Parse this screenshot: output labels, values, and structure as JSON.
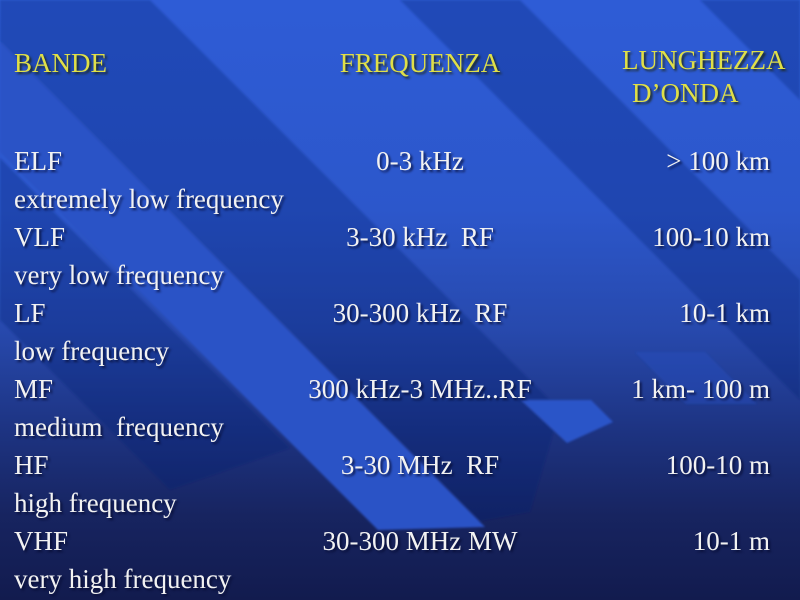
{
  "slide": {
    "header": {
      "bande": "BANDE",
      "frequenza": "FREQUENZA",
      "lunghezza_line1": "LUNGHEZZA",
      "lunghezza_line2": "D’ONDA"
    },
    "rows": [
      {
        "band": "ELF",
        "full": "extremely low frequency",
        "freq": "0-3 kHz",
        "wave": "> 100 km"
      },
      {
        "band": "VLF",
        "full": "very low frequency",
        "freq": "3-30 kHz  RF",
        "wave": "100-10 km"
      },
      {
        "band": "LF",
        "full": "low frequency",
        "freq": "30-300 kHz  RF",
        "wave": "10-1 km"
      },
      {
        "band": "MF",
        "full": "medium  frequency",
        "freq": "300 kHz-3 MHz..RF",
        "wave": "1 km- 100 m"
      },
      {
        "band": "HF",
        "full": "high frequency",
        "freq": "3-30 MHz  RF",
        "wave": "100-10 m"
      },
      {
        "band": "VHF",
        "full": "very high frequency",
        "freq": "30-300 MHz MW",
        "wave": "10-1 m"
      }
    ],
    "colors": {
      "background_top": "#2e5cd6",
      "background_bottom": "#121b4e",
      "stripe_dark": "#22439f",
      "ribbon_bright": "#2a52c6",
      "header_text": "#dfdf48",
      "body_text": "#f2f2f2"
    }
  }
}
